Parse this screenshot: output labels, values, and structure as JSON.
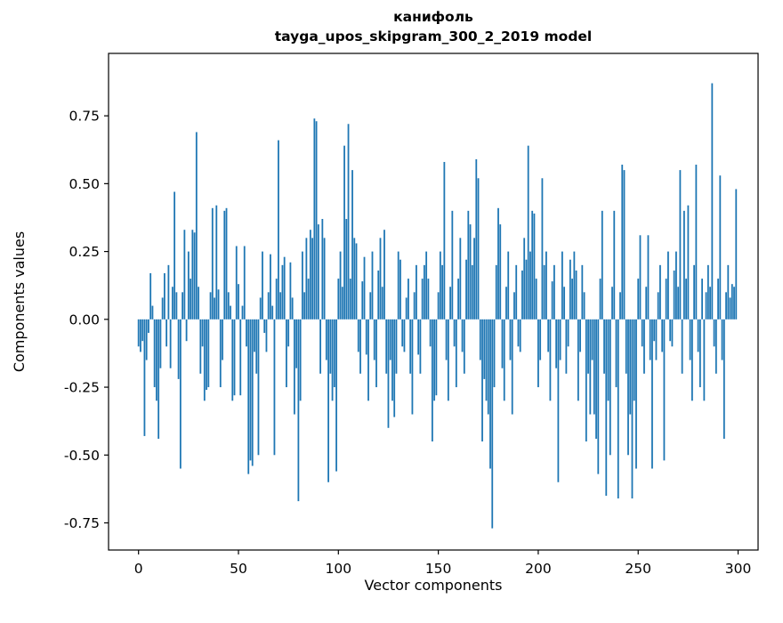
{
  "chart_data": {
    "type": "bar",
    "title": "канифоль",
    "subtitle": "tayga_upos_skipgram_300_2_2019 model",
    "xlabel": "Vector components",
    "ylabel": "Components values",
    "xlim": [
      -15,
      310
    ],
    "ylim": [
      -0.85,
      0.98
    ],
    "xticks": [
      0,
      50,
      100,
      150,
      200,
      250,
      300
    ],
    "yticks": [
      -0.75,
      -0.5,
      -0.25,
      0.0,
      0.25,
      0.5,
      0.75
    ],
    "grid": false,
    "legend": "none",
    "bar_color": "#1f77b4",
    "bar_width": 0.8,
    "x_start": 0,
    "values": [
      -0.1,
      -0.12,
      -0.08,
      -0.43,
      -0.15,
      -0.05,
      0.17,
      0.05,
      -0.25,
      -0.3,
      -0.44,
      -0.18,
      0.08,
      0.17,
      -0.1,
      0.2,
      -0.18,
      0.12,
      0.47,
      0.1,
      -0.22,
      -0.55,
      0.1,
      0.33,
      -0.08,
      0.25,
      0.15,
      0.33,
      0.32,
      0.69,
      0.12,
      -0.2,
      -0.1,
      -0.3,
      -0.26,
      -0.25,
      0.1,
      0.41,
      0.08,
      0.42,
      0.11,
      -0.25,
      -0.15,
      0.4,
      0.41,
      0.1,
      0.05,
      -0.3,
      -0.28,
      0.27,
      0.13,
      -0.28,
      0.05,
      0.27,
      -0.1,
      -0.57,
      -0.52,
      -0.54,
      -0.12,
      -0.2,
      -0.5,
      0.08,
      0.25,
      -0.05,
      -0.12,
      0.1,
      0.24,
      0.05,
      -0.5,
      0.15,
      0.66,
      0.1,
      0.2,
      0.23,
      -0.25,
      -0.1,
      0.21,
      0.08,
      -0.35,
      -0.18,
      -0.67,
      -0.3,
      0.25,
      0.1,
      0.3,
      0.15,
      0.33,
      0.3,
      0.74,
      0.73,
      0.35,
      -0.2,
      0.37,
      0.3,
      -0.15,
      -0.6,
      -0.2,
      -0.3,
      -0.25,
      -0.56,
      0.15,
      0.25,
      0.12,
      0.64,
      0.37,
      0.72,
      0.15,
      0.55,
      0.3,
      0.28,
      -0.12,
      -0.2,
      0.14,
      0.23,
      -0.13,
      -0.3,
      0.1,
      0.25,
      -0.15,
      -0.25,
      0.18,
      0.3,
      0.12,
      0.33,
      -0.2,
      -0.4,
      -0.15,
      -0.3,
      -0.36,
      -0.2,
      0.25,
      0.22,
      -0.1,
      -0.12,
      0.08,
      0.15,
      -0.2,
      -0.35,
      0.1,
      0.2,
      -0.13,
      -0.2,
      0.15,
      0.2,
      0.25,
      0.15,
      -0.1,
      -0.45,
      -0.3,
      -0.28,
      0.1,
      0.25,
      0.2,
      0.58,
      -0.15,
      -0.3,
      0.12,
      0.4,
      -0.1,
      -0.25,
      0.15,
      0.3,
      -0.12,
      -0.2,
      0.22,
      0.4,
      0.35,
      0.2,
      0.3,
      0.59,
      0.52,
      -0.15,
      -0.45,
      -0.22,
      -0.3,
      -0.35,
      -0.55,
      -0.77,
      -0.25,
      0.2,
      0.41,
      0.35,
      -0.18,
      -0.3,
      0.12,
      0.25,
      -0.15,
      -0.35,
      0.1,
      0.2,
      -0.1,
      -0.12,
      0.18,
      0.3,
      0.22,
      0.64,
      0.25,
      0.4,
      0.39,
      0.15,
      -0.25,
      -0.15,
      0.52,
      0.2,
      0.25,
      -0.12,
      -0.3,
      0.14,
      0.2,
      -0.18,
      -0.6,
      -0.15,
      0.25,
      0.12,
      -0.2,
      -0.1,
      0.22,
      0.15,
      0.25,
      0.18,
      -0.3,
      -0.12,
      0.2,
      0.1,
      -0.45,
      -0.2,
      -0.35,
      -0.15,
      -0.35,
      -0.44,
      -0.57,
      0.15,
      0.4,
      -0.2,
      -0.65,
      -0.3,
      -0.5,
      0.12,
      0.4,
      -0.25,
      -0.66,
      0.1,
      0.57,
      0.55,
      -0.2,
      -0.5,
      -0.35,
      -0.66,
      -0.3,
      -0.55,
      0.15,
      0.31,
      -0.1,
      -0.2,
      0.12,
      0.31,
      -0.15,
      -0.55,
      -0.08,
      -0.15,
      0.1,
      0.2,
      -0.12,
      -0.52,
      0.15,
      0.25,
      -0.08,
      -0.1,
      0.18,
      0.25,
      0.12,
      0.55,
      -0.2,
      0.4,
      0.15,
      0.42,
      -0.15,
      -0.3,
      0.2,
      0.57,
      -0.12,
      -0.25,
      0.15,
      -0.3,
      0.1,
      0.2,
      0.12,
      0.87,
      -0.1,
      -0.2,
      0.15,
      0.53,
      -0.15,
      -0.44,
      0.1,
      0.2,
      0.08,
      0.13,
      0.12,
      0.48
    ]
  }
}
